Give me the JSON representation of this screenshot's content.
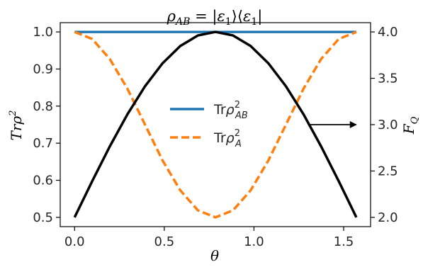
{
  "chart_data": {
    "type": "line",
    "title": "ρ_AB = |ε₁⟩⟨ε₁|",
    "xlabel": "θ",
    "ylabel_left": "Trρ²",
    "ylabel_right": "F_Q",
    "xlim": [
      -0.08,
      1.65
    ],
    "ylim_left": [
      0.475,
      1.025
    ],
    "ylim_right": [
      1.9,
      4.1
    ],
    "x_ticks": [
      "0.0",
      "0.5",
      "1.0",
      "1.5"
    ],
    "x_tick_values": [
      0.0,
      0.5,
      1.0,
      1.5
    ],
    "y_left_ticks": [
      "0.5",
      "0.6",
      "0.7",
      "0.8",
      "0.9",
      "1.0"
    ],
    "y_left_tick_values": [
      0.5,
      0.6,
      0.7,
      0.8,
      0.9,
      1.0
    ],
    "y_right_ticks": [
      "2.0",
      "2.5",
      "3.0",
      "3.5",
      "4.0"
    ],
    "y_right_tick_values": [
      2.0,
      2.5,
      3.0,
      3.5,
      4.0
    ],
    "x": [
      0.0,
      0.0982,
      0.1963,
      0.2945,
      0.3927,
      0.4909,
      0.589,
      0.6872,
      0.7854,
      0.8836,
      0.9817,
      1.0799,
      1.1781,
      1.2763,
      1.3744,
      1.4726,
      1.5708
    ],
    "series": [
      {
        "name": "Trρ²_AB",
        "axis": "left",
        "style": "solid",
        "color": "#1f77b4",
        "values": [
          1.0,
          1.0,
          1.0,
          1.0,
          1.0,
          1.0,
          1.0,
          1.0,
          1.0,
          1.0,
          1.0,
          1.0,
          1.0,
          1.0,
          1.0,
          1.0,
          1.0
        ]
      },
      {
        "name": "Trρ²_A",
        "axis": "left",
        "style": "dashed",
        "color": "#ff7f0e",
        "values": [
          1.0,
          0.981,
          0.927,
          0.847,
          0.75,
          0.653,
          0.573,
          0.519,
          0.5,
          0.519,
          0.573,
          0.653,
          0.75,
          0.847,
          0.927,
          0.981,
          1.0
        ]
      },
      {
        "axis": "right",
        "style": "solid",
        "color": "#000000",
        "values": [
          2.0,
          2.39,
          2.765,
          3.111,
          3.414,
          3.663,
          3.848,
          3.962,
          4.0,
          3.962,
          3.848,
          3.663,
          3.414,
          3.111,
          2.765,
          2.39,
          2.0
        ]
      }
    ],
    "legend": {
      "placement": "center",
      "entries": [
        {
          "label_main": "Trρ",
          "sup": "2",
          "sub": "AB",
          "color": "#1f77b4",
          "style": "solid"
        },
        {
          "label_main": "Trρ",
          "sup": "2",
          "sub": "A",
          "color": "#ff7f0e",
          "style": "dashed"
        }
      ]
    },
    "annotation": {
      "type": "arrow",
      "direction": "right",
      "from_x": 1.3,
      "to_x": 1.57,
      "y_right": 3.0
    },
    "grid": false
  }
}
